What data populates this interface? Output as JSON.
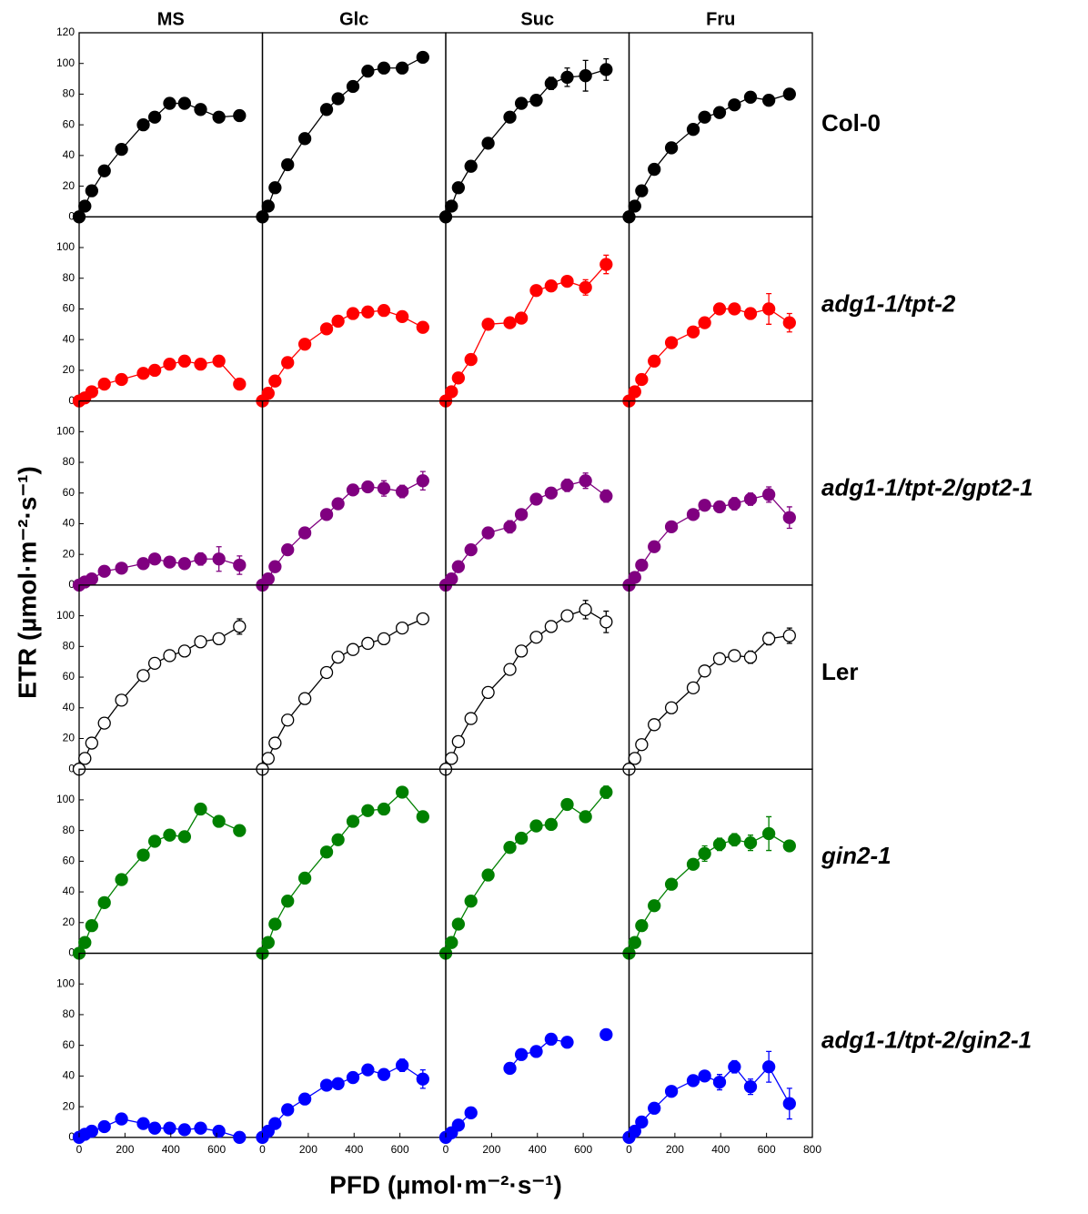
{
  "chart_data": {
    "type": "scatter",
    "xlabel": "PFD (µmol·m⁻²·s⁻¹)",
    "ylabel": "ETR (µmol·m⁻²·s⁻¹)",
    "xlim": [
      0,
      800
    ],
    "xticks": [
      0,
      200,
      400,
      600,
      800
    ],
    "ylim": [
      0,
      120
    ],
    "yticks": [
      0,
      20,
      40,
      60,
      80,
      100,
      120
    ],
    "x": [
      0,
      25,
      55,
      110,
      185,
      280,
      330,
      395,
      460,
      530,
      610,
      700
    ],
    "columns": [
      "MS",
      "Glc",
      "Suc",
      "Fru"
    ],
    "rows": [
      {
        "name": "Col-0",
        "color": "#000000",
        "filled": true,
        "italic": false,
        "panels": [
          {
            "values": [
              0,
              7,
              17,
              30,
              44,
              60,
              65,
              74,
              74,
              70,
              65,
              66
            ]
          },
          {
            "values": [
              0,
              7,
              19,
              34,
              51,
              70,
              77,
              85,
              95,
              97,
              97,
              104
            ]
          },
          {
            "values": [
              0,
              7,
              19,
              33,
              48,
              65,
              74,
              76,
              87,
              91,
              92,
              96
            ],
            "errors": [
              null,
              null,
              null,
              null,
              null,
              null,
              null,
              null,
              4,
              6,
              10,
              7
            ]
          },
          {
            "values": [
              0,
              7,
              17,
              31,
              45,
              57,
              65,
              68,
              73,
              78,
              76,
              80
            ]
          }
        ]
      },
      {
        "name": "adg1-1/tpt-2",
        "color": "#ff0000",
        "filled": true,
        "italic": true,
        "panels": [
          {
            "values": [
              0,
              2,
              6,
              11,
              14,
              18,
              20,
              24,
              26,
              24,
              26,
              11
            ]
          },
          {
            "values": [
              0,
              5,
              13,
              25,
              37,
              47,
              52,
              57,
              58,
              59,
              55,
              48
            ]
          },
          {
            "values": [
              0,
              6,
              15,
              27,
              50,
              51,
              54,
              72,
              75,
              78,
              74,
              89
            ],
            "errors": [
              null,
              null,
              null,
              null,
              null,
              null,
              null,
              null,
              null,
              3,
              5,
              6
            ]
          },
          {
            "values": [
              0,
              6,
              14,
              26,
              38,
              45,
              51,
              60,
              60,
              57,
              60,
              51
            ],
            "errors": [
              null,
              null,
              null,
              null,
              null,
              null,
              null,
              null,
              null,
              null,
              10,
              6
            ]
          }
        ]
      },
      {
        "name": "adg1-1/tpt-2/gpt2-1",
        "color": "#800080",
        "filled": true,
        "italic": true,
        "panels": [
          {
            "values": [
              0,
              2,
              4,
              9,
              11,
              14,
              17,
              15,
              14,
              17,
              17,
              13
            ],
            "errors": [
              null,
              null,
              null,
              null,
              null,
              null,
              3,
              3,
              null,
              4,
              8,
              6
            ]
          },
          {
            "values": [
              0,
              4,
              12,
              23,
              34,
              46,
              53,
              62,
              64,
              63,
              61,
              68
            ],
            "errors": [
              null,
              null,
              null,
              null,
              null,
              null,
              null,
              null,
              null,
              5,
              4,
              6
            ]
          },
          {
            "values": [
              0,
              4,
              12,
              23,
              34,
              38,
              46,
              56,
              60,
              65,
              68,
              58
            ],
            "errors": [
              null,
              null,
              null,
              null,
              null,
              4,
              null,
              null,
              null,
              4,
              5,
              4
            ]
          },
          {
            "values": [
              0,
              5,
              13,
              25,
              38,
              46,
              52,
              51,
              53,
              56,
              59,
              44
            ],
            "errors": [
              null,
              null,
              null,
              null,
              null,
              null,
              null,
              null,
              4,
              4,
              5,
              7
            ]
          }
        ]
      },
      {
        "name": "Ler",
        "color": "#000000",
        "filled": false,
        "italic": false,
        "panels": [
          {
            "values": [
              0,
              7,
              17,
              30,
              45,
              61,
              69,
              74,
              77,
              83,
              85,
              93
            ],
            "errors": [
              null,
              null,
              null,
              null,
              null,
              null,
              null,
              null,
              null,
              null,
              null,
              5
            ]
          },
          {
            "values": [
              0,
              7,
              17,
              32,
              46,
              63,
              73,
              78,
              82,
              85,
              92,
              98
            ]
          },
          {
            "values": [
              0,
              7,
              18,
              33,
              50,
              65,
              77,
              86,
              93,
              100,
              104,
              96
            ],
            "errors": [
              null,
              null,
              null,
              null,
              null,
              null,
              null,
              null,
              null,
              null,
              6,
              7
            ]
          },
          {
            "values": [
              0,
              7,
              16,
              29,
              40,
              53,
              64,
              72,
              74,
              73,
              85,
              87
            ],
            "errors": [
              null,
              null,
              null,
              null,
              null,
              null,
              null,
              null,
              null,
              4,
              4,
              5
            ]
          }
        ]
      },
      {
        "name": "gin2-1",
        "color": "#008000",
        "filled": true,
        "italic": true,
        "panels": [
          {
            "values": [
              0,
              7,
              18,
              33,
              48,
              64,
              73,
              77,
              76,
              94,
              86,
              80
            ]
          },
          {
            "values": [
              0,
              7,
              19,
              34,
              49,
              66,
              74,
              86,
              93,
              94,
              105,
              89
            ]
          },
          {
            "values": [
              0,
              7,
              19,
              34,
              51,
              69,
              75,
              83,
              84,
              97,
              89,
              105
            ],
            "errors": [
              null,
              null,
              null,
              null,
              null,
              null,
              null,
              null,
              null,
              null,
              null,
              4
            ]
          },
          {
            "values": [
              0,
              7,
              18,
              31,
              45,
              58,
              65,
              71,
              74,
              72,
              78,
              70
            ],
            "errors": [
              null,
              null,
              null,
              null,
              null,
              null,
              5,
              4,
              4,
              5,
              11,
              null
            ]
          }
        ]
      },
      {
        "name": "adg1-1/tpt-2/gin2-1",
        "color": "#0000ff",
        "filled": true,
        "italic": true,
        "panels": [
          {
            "values": [
              0,
              2,
              4,
              7,
              12,
              9,
              6,
              6,
              5,
              6,
              4,
              0
            ]
          },
          {
            "values": [
              0,
              4,
              9,
              18,
              25,
              34,
              35,
              39,
              44,
              41,
              47,
              38
            ],
            "errors": [
              null,
              null,
              null,
              null,
              null,
              null,
              null,
              null,
              null,
              null,
              4,
              6
            ]
          },
          {
            "values": [
              0,
              3,
              8,
              16,
              null,
              45,
              54,
              56,
              64,
              62,
              null,
              67
            ]
          },
          {
            "values": [
              0,
              4,
              10,
              19,
              30,
              37,
              40,
              36,
              46,
              33,
              46,
              22
            ],
            "errors": [
              null,
              null,
              null,
              null,
              null,
              null,
              null,
              5,
              4,
              5,
              10,
              10
            ]
          }
        ]
      }
    ]
  }
}
